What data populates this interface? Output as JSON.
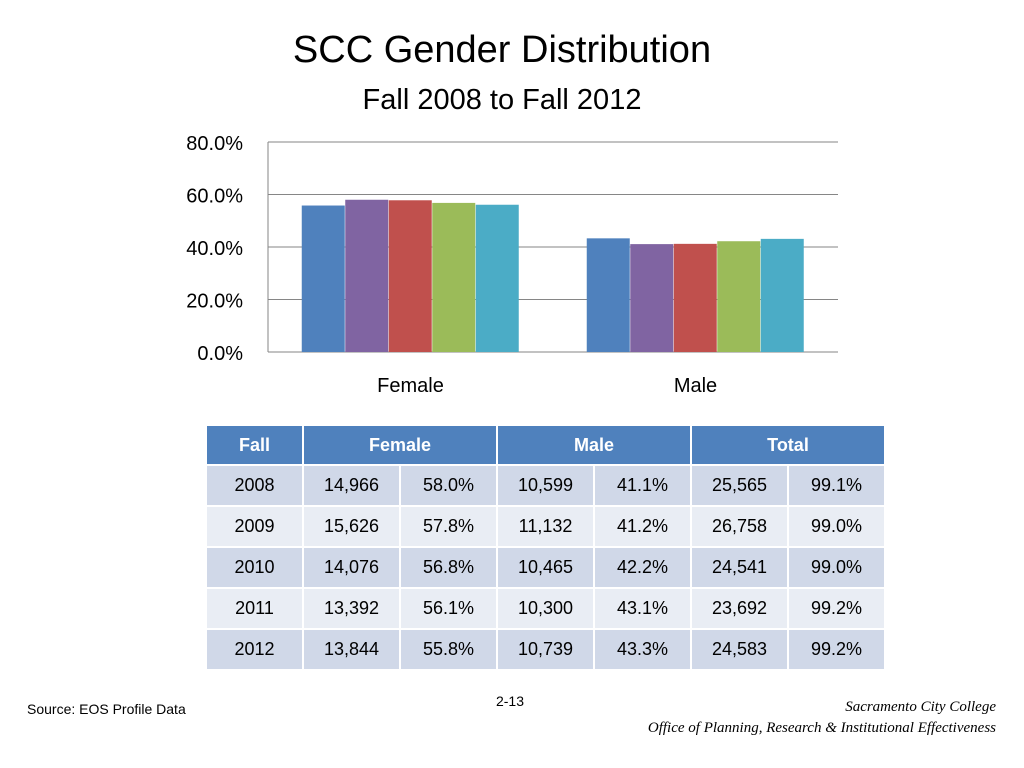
{
  "slide": {
    "title": "SCC Gender Distribution",
    "subtitle": "Fall 2008 to Fall 2012"
  },
  "chart_data": {
    "type": "bar",
    "title": "SCC Gender Distribution",
    "subtitle": "Fall 2008 to Fall 2012",
    "categories": [
      "Female",
      "Male"
    ],
    "series": [
      {
        "color": "#4f81bd",
        "values": [
          55.8,
          43.3
        ]
      },
      {
        "color": "#8064a2",
        "values": [
          58.0,
          41.1
        ]
      },
      {
        "color": "#c0504d",
        "values": [
          57.8,
          41.2
        ]
      },
      {
        "color": "#9bbb59",
        "values": [
          56.8,
          42.2
        ]
      },
      {
        "color": "#4bacc6",
        "values": [
          56.1,
          43.1
        ]
      }
    ],
    "ylim": [
      0,
      80
    ],
    "yticks": [
      "0.0%",
      "20.0%",
      "40.0%",
      "60.0%",
      "80.0%"
    ],
    "ytick_values": [
      0,
      20,
      40,
      60,
      80
    ],
    "grid": true,
    "xlabel": "",
    "ylabel": ""
  },
  "table": {
    "headers": [
      "Fall",
      "Female",
      "Male",
      "Total"
    ],
    "rows": [
      [
        "2008",
        "14,966",
        "58.0%",
        "10,599",
        "41.1%",
        "25,565",
        "99.1%"
      ],
      [
        "2009",
        "15,626",
        "57.8%",
        "11,132",
        "41.2%",
        "26,758",
        "99.0%"
      ],
      [
        "2010",
        "14,076",
        "56.8%",
        "10,465",
        "42.2%",
        "24,541",
        "99.0%"
      ],
      [
        "2011",
        "13,392",
        "56.1%",
        "10,300",
        "43.1%",
        "23,692",
        "99.2%"
      ],
      [
        "2012",
        "13,844",
        "55.8%",
        "10,739",
        "43.3%",
        "24,583",
        "99.2%"
      ]
    ]
  },
  "footer": {
    "source": "Source: EOS Profile Data",
    "page_number": "2-13",
    "college": "Sacramento City College",
    "office": "Office of Planning, Research & Institutional Effectiveness"
  },
  "colors": {
    "header": "#4f81bd",
    "row_dark": "#d0d8e8",
    "row_light": "#e9edf4"
  }
}
